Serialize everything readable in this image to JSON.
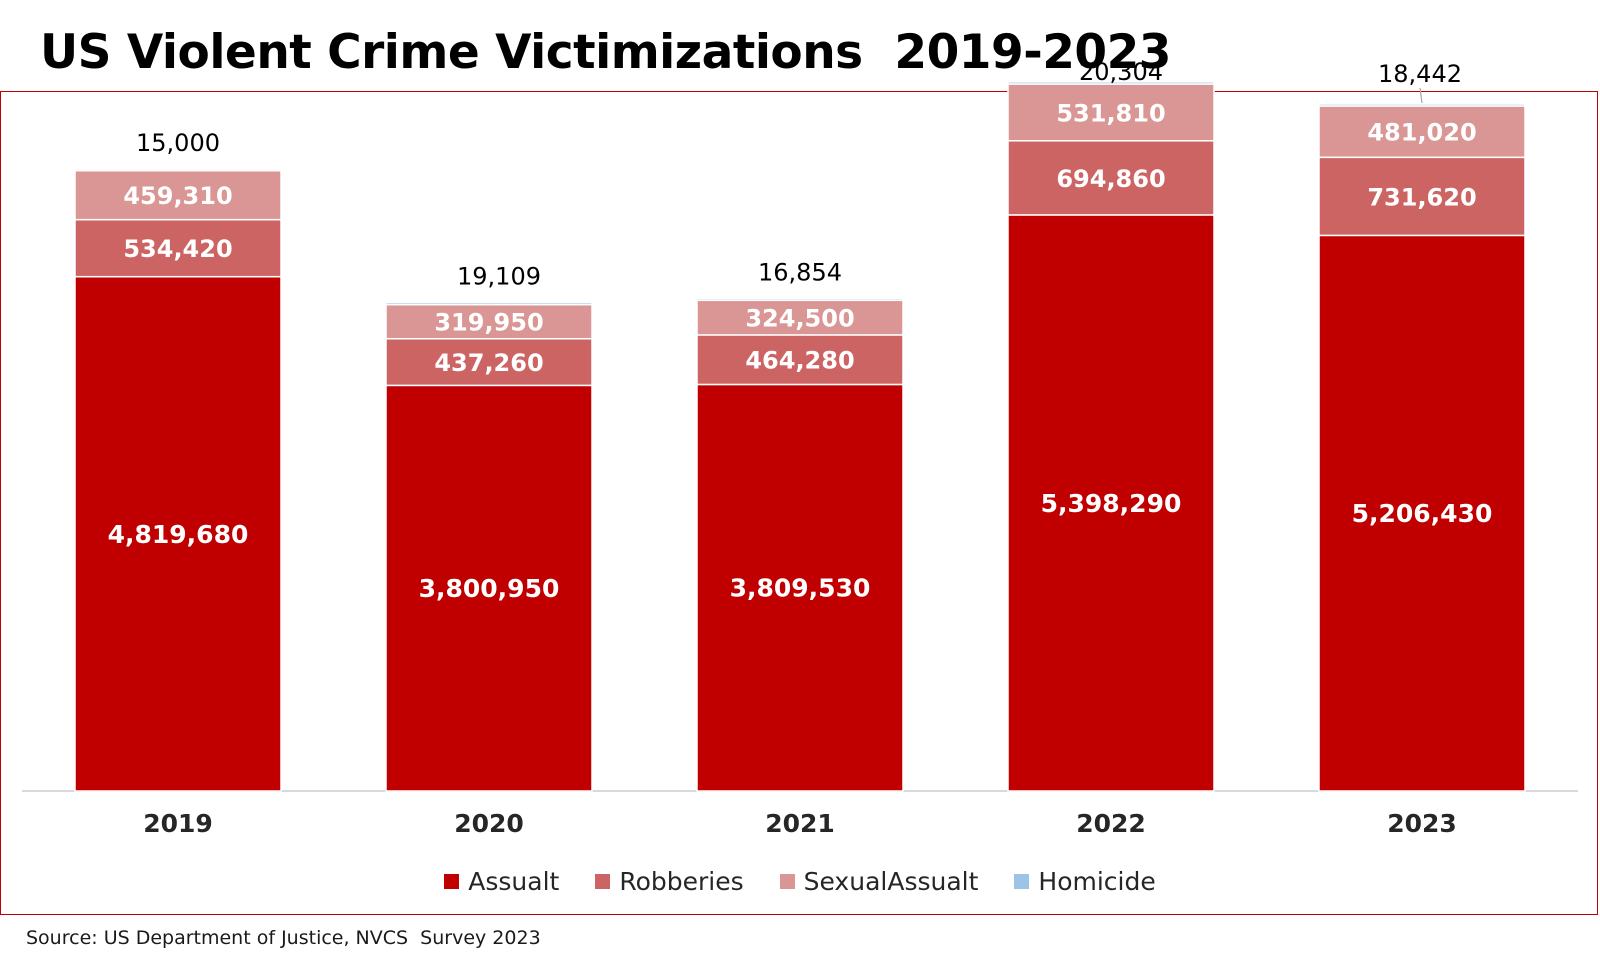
{
  "title": "US Violent Crime Victimizations  2019-2023",
  "source": "Source: US Department of Justice, NVCS  Survey 2023",
  "colors": {
    "frame": "#c00000",
    "Assualt": "#c00000",
    "Robberies": "#cd6464",
    "SexualAssualt": "#d99694",
    "Homicide": "#9dc3e6"
  },
  "legend": [
    {
      "label": "Assualt",
      "color": "#c00000"
    },
    {
      "label": "Robberies",
      "color": "#cd6464"
    },
    {
      "label": "SexualAssualt",
      "color": "#d99694"
    },
    {
      "label": "Homicide",
      "color": "#9dc3e6"
    }
  ],
  "chart_data": {
    "type": "bar",
    "stacked": true,
    "title": "US Violent Crime Victimizations  2019-2023",
    "categories": [
      "2019",
      "2020",
      "2021",
      "2022",
      "2023"
    ],
    "series": [
      {
        "name": "Assualt",
        "values": [
          4819680,
          3800950,
          3809530,
          5398290,
          5206430
        ],
        "labels": [
          "4,819,680",
          "3,800,950",
          "3,809,530",
          "5,398,290",
          "5,206,430"
        ]
      },
      {
        "name": "Robberies",
        "values": [
          534420,
          437260,
          464280,
          694860,
          731620
        ],
        "labels": [
          "534,420",
          "437,260",
          "464,280",
          "694,860",
          "731,620"
        ]
      },
      {
        "name": "SexualAssualt",
        "values": [
          459310,
          319950,
          324500,
          531810,
          481020
        ],
        "labels": [
          "459,310",
          "319,950",
          "324,500",
          "531,810",
          "481,020"
        ]
      },
      {
        "name": "Homicide",
        "values": [
          15000,
          19109,
          16854,
          20304,
          18442
        ],
        "labels": [
          "15,000",
          "19,109",
          "16,854",
          "20,304",
          "18,442"
        ]
      }
    ],
    "ylim": [
      0,
      6850000
    ],
    "grid": false,
    "legend": "bottom"
  }
}
